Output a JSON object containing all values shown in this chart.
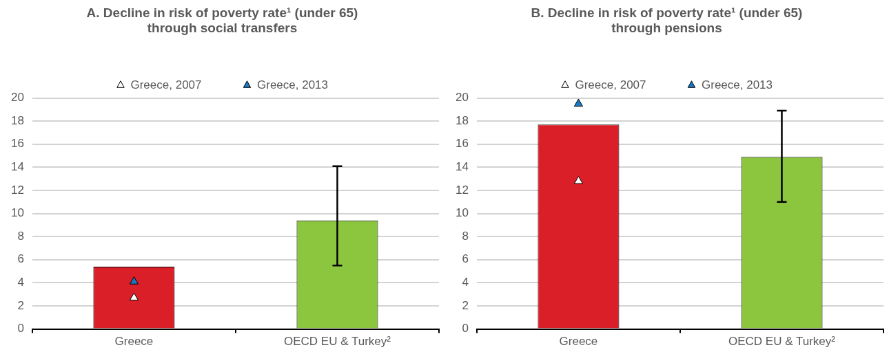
{
  "chart_data": [
    {
      "type": "bar",
      "title": [
        "A. Decline in risk of poverty rate¹ (under 65)",
        "through social transfers"
      ],
      "categories": [
        "Greece",
        "OECD EU & Turkey²"
      ],
      "series": [
        {
          "colors": [
            "#da1f28",
            "#8cc63f"
          ],
          "values": [
            5.4,
            9.4
          ],
          "errors": [
            null,
            [
              5.5,
              14.1
            ]
          ]
        },
        {
          "type": "scatter",
          "name": "Greece, 2007",
          "color": "#ffffff",
          "x": [
            "Greece"
          ],
          "values": [
            2.7
          ]
        },
        {
          "type": "scatter",
          "name": "Greece, 2013",
          "color": "#1a78c2",
          "x": [
            "Greece"
          ],
          "values": [
            4.1
          ]
        }
      ],
      "ylim": [
        0,
        20
      ],
      "yticks": [
        0,
        2,
        4,
        6,
        8,
        10,
        12,
        14,
        16,
        18,
        20
      ],
      "grid": "y",
      "legend": "top",
      "marker": "triangle"
    },
    {
      "type": "bar",
      "title": [
        "B. Decline in risk of poverty rate¹ (under 65)",
        "through pensions"
      ],
      "categories": [
        "Greece",
        "OECD EU & Turkey²"
      ],
      "series": [
        {
          "colors": [
            "#da1f28",
            "#8cc63f"
          ],
          "values": [
            17.7,
            14.9
          ],
          "errors": [
            null,
            [
              11.0,
              18.9
            ]
          ]
        },
        {
          "type": "scatter",
          "name": "Greece, 2007",
          "color": "#ffffff",
          "x": [
            "Greece"
          ],
          "values": [
            12.8
          ]
        },
        {
          "type": "scatter",
          "name": "Greece, 2013",
          "color": "#1a78c2",
          "x": [
            "Greece"
          ],
          "values": [
            19.5
          ]
        }
      ],
      "ylim": [
        0,
        20
      ],
      "yticks": [
        0,
        2,
        4,
        6,
        8,
        10,
        12,
        14,
        16,
        18,
        20
      ],
      "grid": "y",
      "legend": "top",
      "marker": "triangle"
    }
  ]
}
